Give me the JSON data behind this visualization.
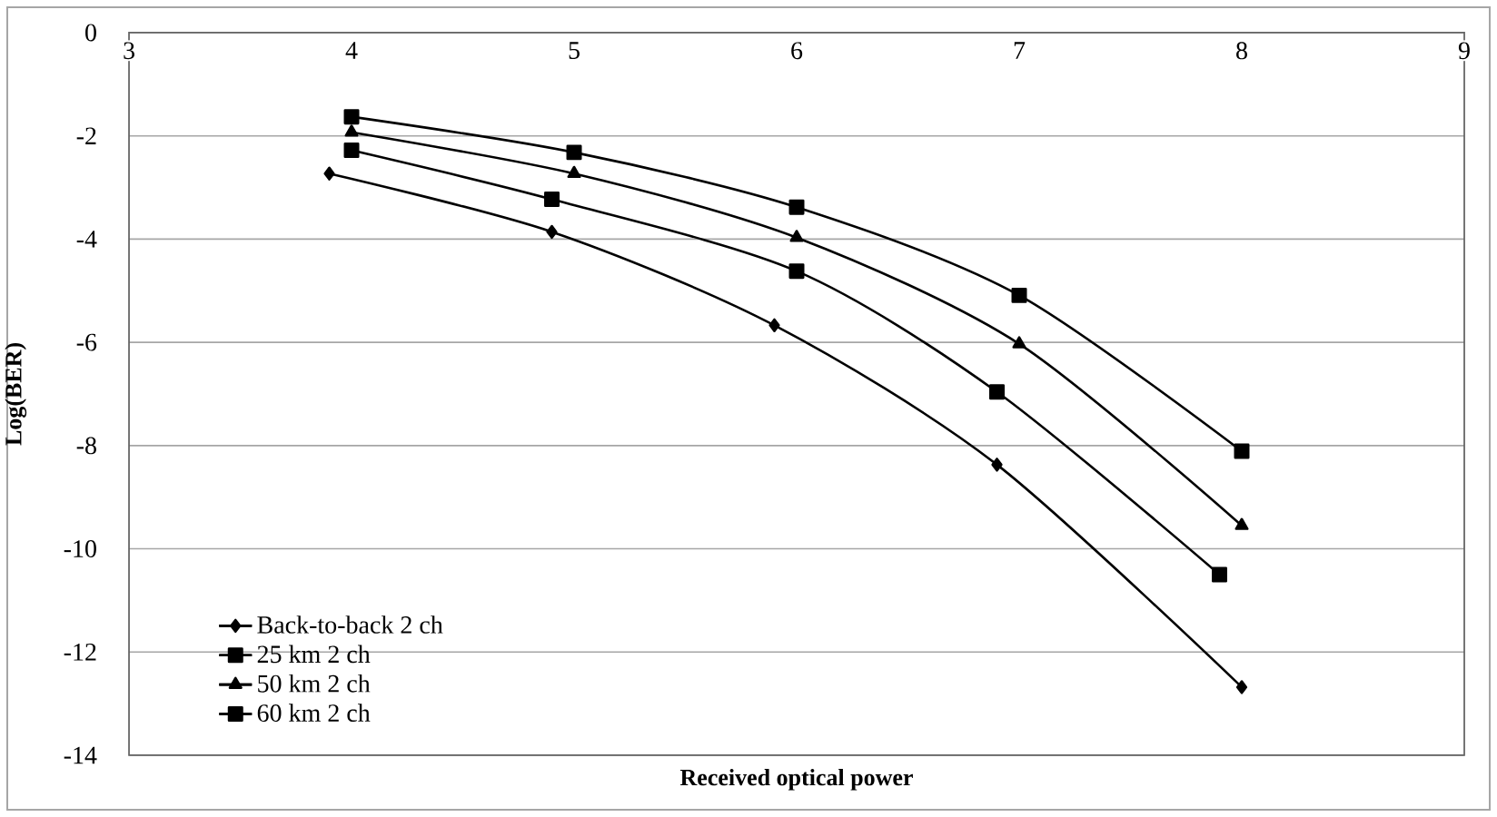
{
  "chart_data": {
    "type": "line",
    "xlabel": "Received optical power",
    "ylabel": "Log(BER)",
    "xlim": [
      3,
      9
    ],
    "ylim": [
      -14,
      0
    ],
    "xticks": [
      3,
      4,
      5,
      6,
      7,
      8,
      9
    ],
    "yticks": [
      0,
      -2,
      -4,
      -6,
      -8,
      -10,
      -12,
      -14
    ],
    "grid": "y",
    "legend": "bottom left",
    "line_style": "solid",
    "series": [
      {
        "name": "Back-to-back 2 ch",
        "color": "#000000",
        "marker": "diamond",
        "x": [
          3.9,
          4.9,
          5.9,
          6.9,
          8.0
        ],
        "values": [
          -2.73,
          -3.86,
          -5.67,
          -8.37,
          -12.68
        ]
      },
      {
        "name": "25 km 2 ch",
        "color": "#000000",
        "marker": "square",
        "x": [
          4.0,
          4.9,
          6.0,
          6.9,
          7.9
        ],
        "values": [
          -2.28,
          -3.23,
          -4.62,
          -6.96,
          -10.5
        ]
      },
      {
        "name": "50 km 2 ch",
        "color": "#000000",
        "marker": "triangle",
        "x": [
          4.0,
          5.0,
          6.0,
          7.0,
          8.0
        ],
        "values": [
          -1.93,
          -2.73,
          -3.97,
          -6.03,
          -9.55
        ]
      },
      {
        "name": "60 km 2 ch",
        "color": "#000000",
        "marker": "square",
        "x": [
          4.0,
          5.0,
          6.0,
          7.0,
          8.0
        ],
        "values": [
          -1.63,
          -2.32,
          -3.38,
          -5.09,
          -8.11
        ]
      }
    ]
  }
}
